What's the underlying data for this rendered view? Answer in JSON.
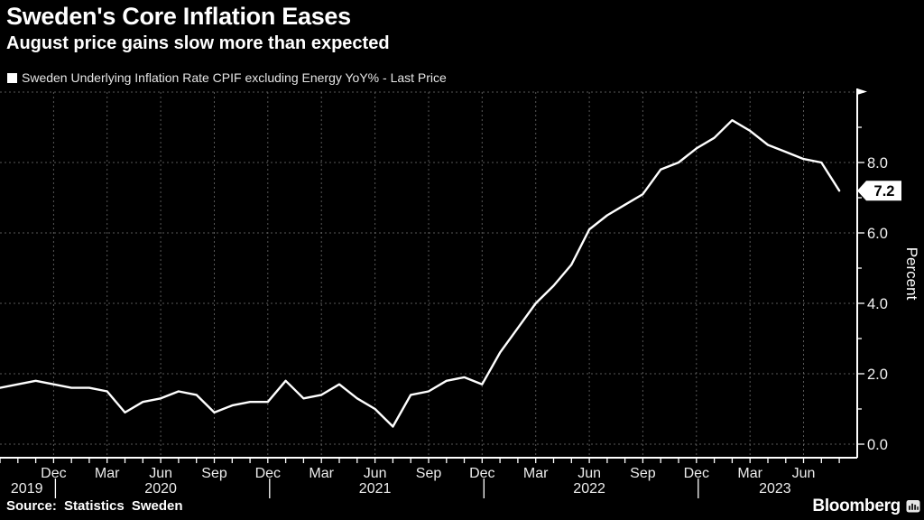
{
  "header": {
    "title": "Sweden's Core Inflation Eases",
    "subtitle": "August price gains slow more than expected"
  },
  "legend": {
    "label": "Sweden Underlying Inflation Rate CPIF excluding Energy YoY% - Last Price"
  },
  "chart_data": {
    "type": "line",
    "title": "Sweden's Core Inflation Eases",
    "background": "#000000",
    "grid": true,
    "grid_color": "#6f6f6f",
    "legend_position": "top-left",
    "series": [
      {
        "name": "Sweden Underlying Inflation Rate CPIF excluding Energy YoY% - Last Price",
        "color": "#ffffff",
        "frequency": "monthly",
        "start_month": "2019-09",
        "end_month": "2023-08",
        "values": [
          1.6,
          1.7,
          1.8,
          1.7,
          1.6,
          1.6,
          1.5,
          0.9,
          1.2,
          1.3,
          1.5,
          1.4,
          0.9,
          1.1,
          1.2,
          1.2,
          1.8,
          1.3,
          1.4,
          1.7,
          1.3,
          1.0,
          0.5,
          1.4,
          1.5,
          1.8,
          1.9,
          1.7,
          2.6,
          3.3,
          4.0,
          4.5,
          5.1,
          6.1,
          6.5,
          6.8,
          7.1,
          7.8,
          8.0,
          8.4,
          8.7,
          9.2,
          8.9,
          8.5,
          8.3,
          8.1,
          8.0,
          7.2
        ]
      }
    ],
    "last_price": "7.2",
    "ylabel": "Percent",
    "ylim": [
      0,
      10
    ],
    "ytick_values": [
      0,
      2,
      4,
      6,
      8
    ],
    "ytick_labels": [
      "0.0",
      "2.0",
      "4.0",
      "6.0",
      "8.0"
    ],
    "ygrid_values": [
      0,
      2,
      4,
      6,
      8,
      10
    ],
    "yminor_values": [
      1,
      3,
      5,
      7,
      9
    ],
    "xtick_quarter_indices": [
      3,
      6,
      9,
      12,
      15,
      18,
      21,
      24,
      27,
      30,
      33,
      36,
      39,
      42,
      45
    ],
    "xtick_quarter_labels": [
      "Dec",
      "Mar",
      "Jun",
      "Sep",
      "Dec",
      "Mar",
      "Jun",
      "Sep",
      "Dec",
      "Mar",
      "Jun",
      "Sep",
      "Dec",
      "Mar",
      "Jun"
    ],
    "year_labels": [
      {
        "label": "2019",
        "center_index": 1.5
      },
      {
        "label": "2020",
        "center_index": 9
      },
      {
        "label": "2021",
        "center_index": 21
      },
      {
        "label": "2022",
        "center_index": 33
      },
      {
        "label": "2023",
        "center_index": 43.4
      }
    ],
    "year_separator_indices": [
      3,
      15,
      27,
      39
    ]
  },
  "source": {
    "text": "Source: Statistics Sweden"
  },
  "branding": {
    "wordmark": "Bloomberg"
  }
}
